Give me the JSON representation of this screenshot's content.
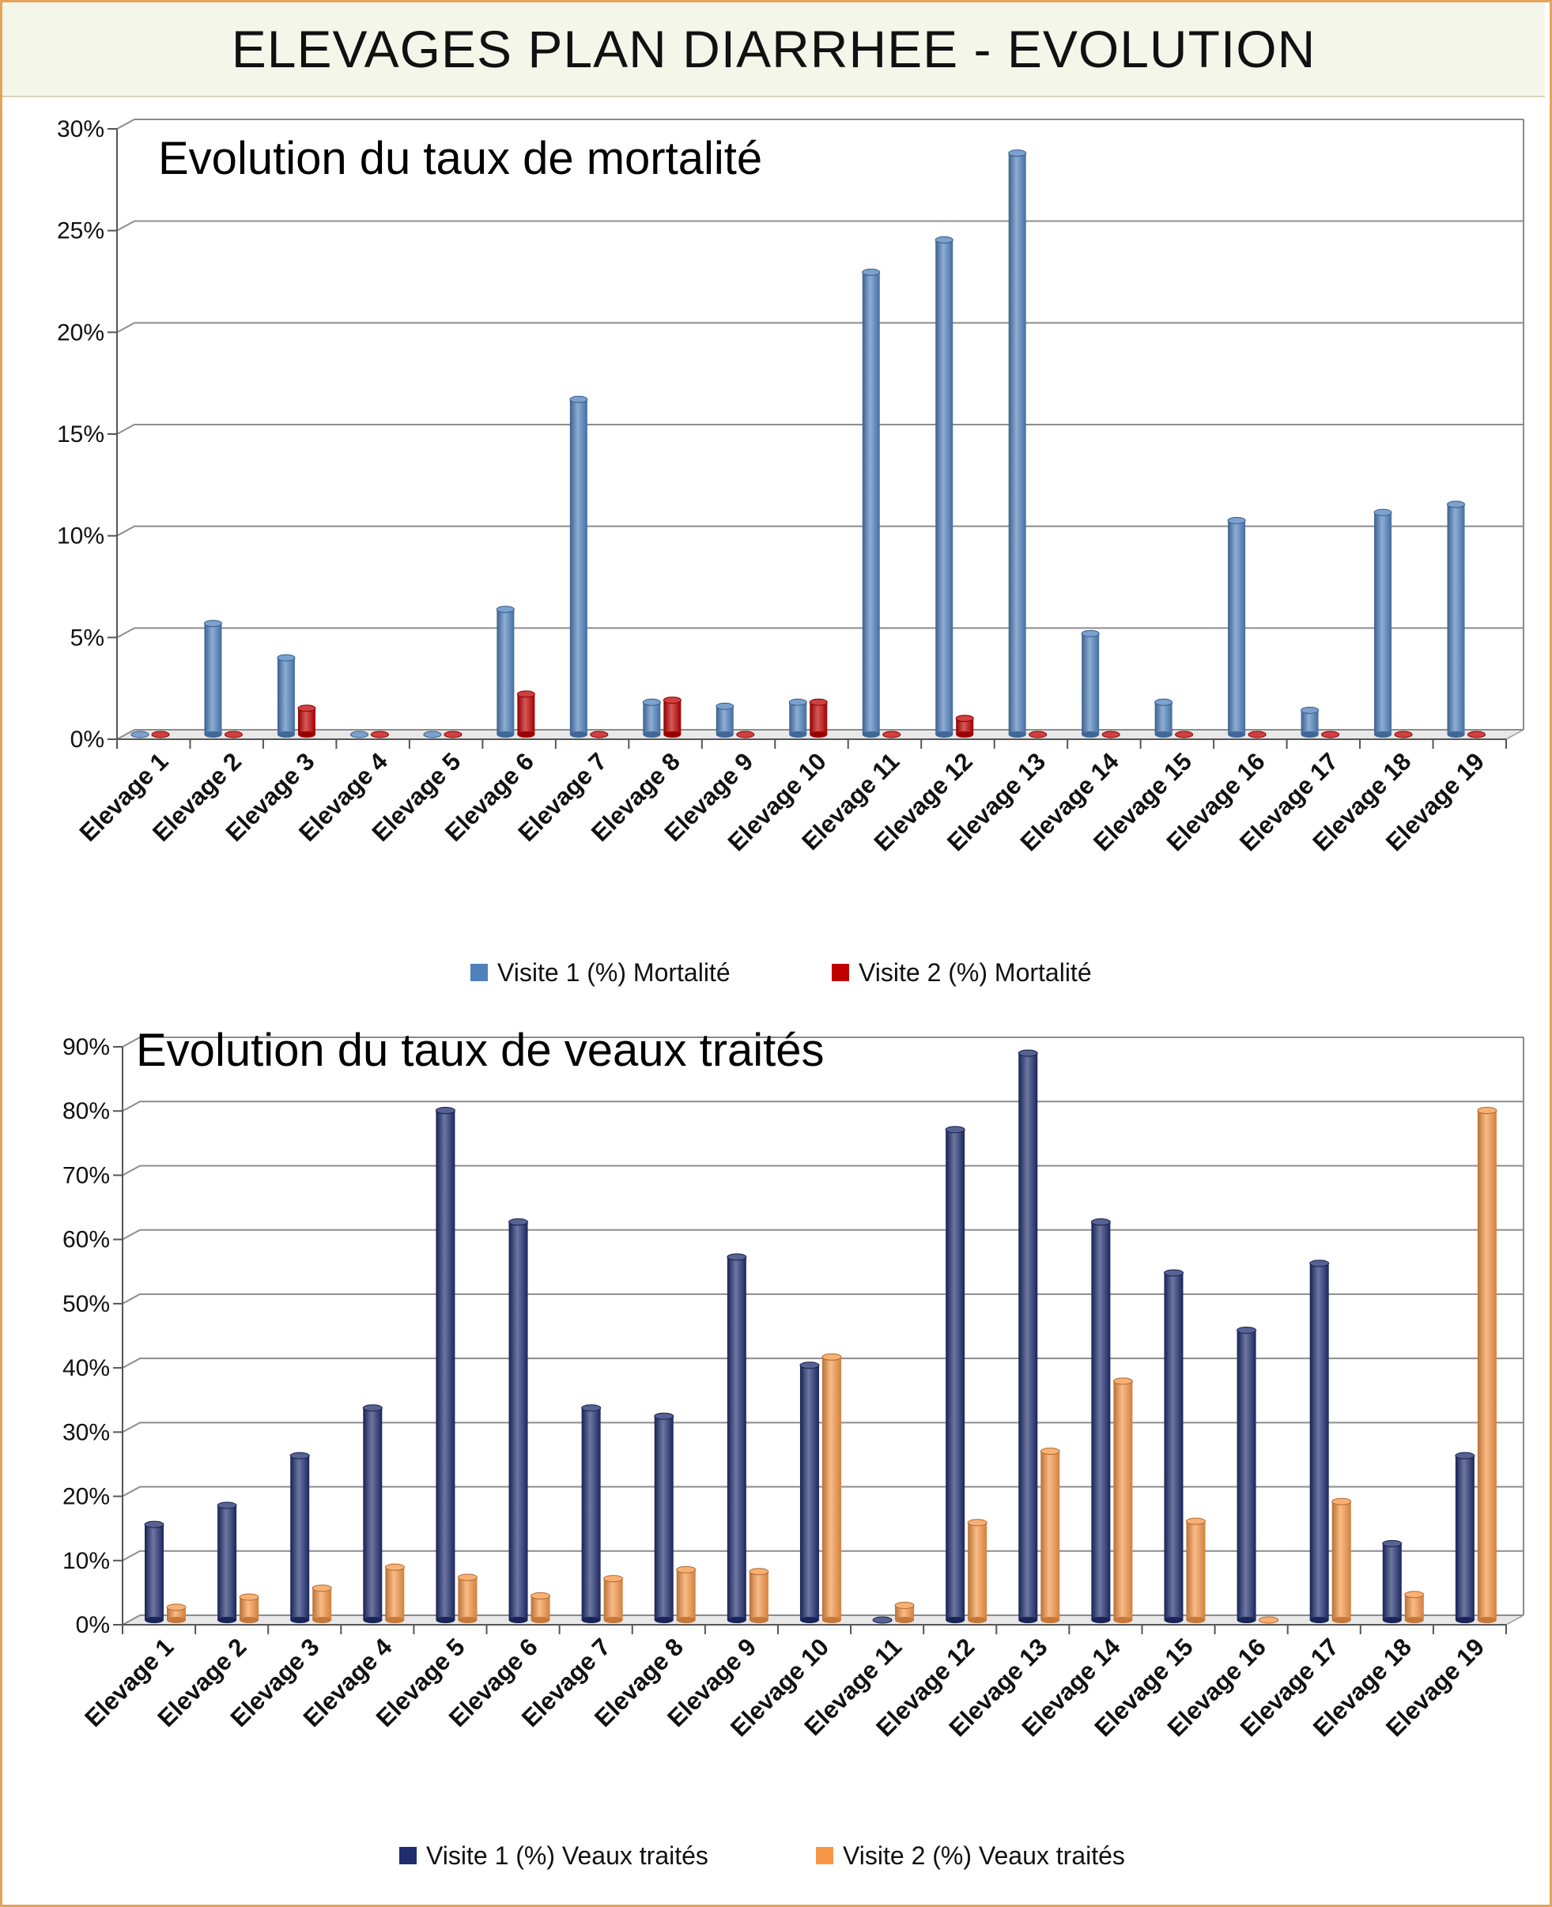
{
  "header": {
    "title": "ELEVAGES PLAN DIARRHEE - EVOLUTION"
  },
  "chart_data": [
    {
      "type": "bar",
      "title": "Evolution du taux de mortalité",
      "categories": [
        "Elevage 1",
        "Elevage 2",
        "Elevage 3",
        "Elevage 4",
        "Elevage 5",
        "Elevage 6",
        "Elevage 7",
        "Elevage 8",
        "Elevage 9",
        "Elevage 10",
        "Elevage 11",
        "Elevage 12",
        "Elevage 13",
        "Elevage 14",
        "Elevage 15",
        "Elevage 16",
        "Elevage 17",
        "Elevage 18",
        "Elevage 19"
      ],
      "series": [
        {
          "name": "Visite 1 (%) Mortalité",
          "color": "#4f81bd",
          "values": [
            0,
            5.5,
            3.8,
            0,
            0,
            6.2,
            16.6,
            1.6,
            1.4,
            1.6,
            22.9,
            24.5,
            28.8,
            5.0,
            1.6,
            10.6,
            1.2,
            11.0,
            11.4
          ]
        },
        {
          "name": "Visite 2 (%) Mortalité",
          "color": "#c00000",
          "values": [
            0,
            0,
            1.3,
            0,
            0,
            2.0,
            0,
            1.7,
            0,
            1.6,
            0,
            0.8,
            0,
            0,
            0,
            0,
            0,
            0,
            0
          ]
        }
      ],
      "yticks": [
        "0%",
        "5%",
        "10%",
        "15%",
        "20%",
        "25%",
        "30%"
      ],
      "ylim": [
        0,
        30
      ],
      "grid": true,
      "legend": "bottom"
    },
    {
      "type": "bar",
      "title": "Evolution du taux de veaux traités",
      "categories": [
        "Elevage 1",
        "Elevage 2",
        "Elevage 3",
        "Elevage 4",
        "Elevage 5",
        "Elevage 6",
        "Elevage 7",
        "Elevage 8",
        "Elevage 9",
        "Elevage 10",
        "Elevage 11",
        "Elevage 12",
        "Elevage 13",
        "Elevage 14",
        "Elevage 15",
        "Elevage 16",
        "Elevage 17",
        "Elevage 18",
        "Elevage 19"
      ],
      "series": [
        {
          "name": "Visite 1 (%) Veaux traités",
          "color": "#1f2d6e",
          "values": [
            15,
            18,
            25.8,
            33.3,
            80,
            62.5,
            33.3,
            32,
            57,
            40,
            0,
            77,
            89,
            62.5,
            54.5,
            45.5,
            56,
            12,
            25.8
          ]
        },
        {
          "name": "Visite 2 (%) Veaux traités",
          "color": "#f79646",
          "values": [
            2,
            3.6,
            5,
            8.3,
            6.7,
            3.8,
            6.5,
            7.9,
            7.6,
            41.3,
            2.3,
            15.3,
            26.5,
            37.5,
            15.5,
            0,
            18.6,
            4,
            80
          ]
        }
      ],
      "yticks": [
        "0%",
        "10%",
        "20%",
        "30%",
        "40%",
        "50%",
        "60%",
        "70%",
        "80%",
        "90%"
      ],
      "ylim": [
        0,
        90
      ],
      "grid": true,
      "legend": "bottom"
    }
  ]
}
